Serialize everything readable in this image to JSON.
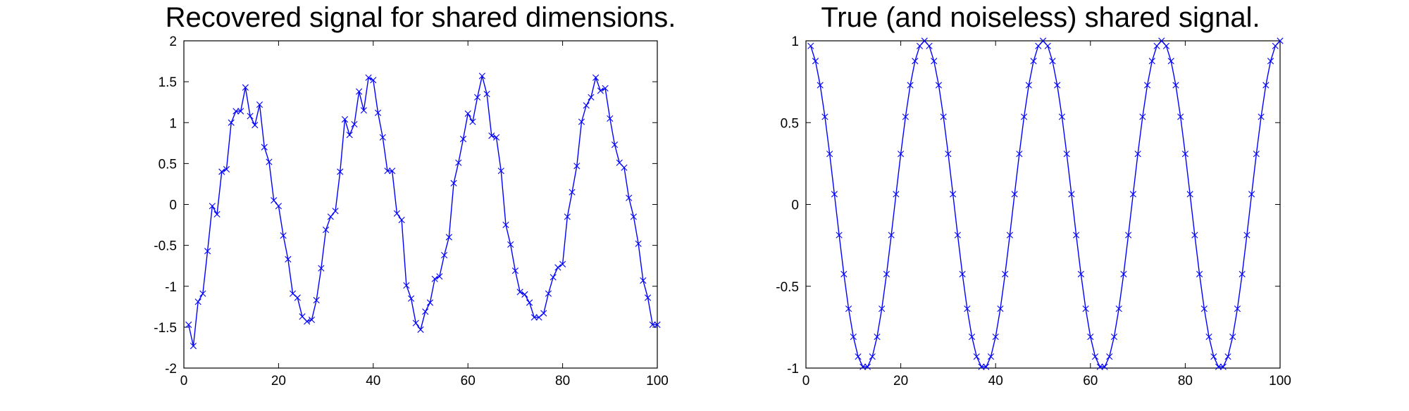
{
  "chart_data": [
    {
      "type": "line",
      "title": "Recovered signal for shared dimensions.",
      "xlabel": "",
      "ylabel": "",
      "xlim": [
        0,
        100
      ],
      "ylim": [
        -2,
        2
      ],
      "xticks": [
        0,
        20,
        40,
        60,
        80,
        100
      ],
      "xtick_labels": [
        "0",
        "20",
        "40",
        "60",
        "80",
        "100"
      ],
      "yticks": [
        -2,
        -1.5,
        -1,
        -0.5,
        0,
        0.5,
        1,
        1.5,
        2
      ],
      "ytick_labels": [
        "-2",
        "-1.5",
        "-1",
        "-0.5",
        "0",
        "0.5",
        "1",
        "1.5",
        "2"
      ],
      "grid": false,
      "marker": "x",
      "color": "#0000ff",
      "x": [
        1,
        2,
        3,
        4,
        5,
        6,
        7,
        8,
        9,
        10,
        11,
        12,
        13,
        14,
        15,
        16,
        17,
        18,
        19,
        20,
        21,
        22,
        23,
        24,
        25,
        26,
        27,
        28,
        29,
        30,
        31,
        32,
        33,
        34,
        35,
        36,
        37,
        38,
        39,
        40,
        41,
        42,
        43,
        44,
        45,
        46,
        47,
        48,
        49,
        50,
        51,
        52,
        53,
        54,
        55,
        56,
        57,
        58,
        59,
        60,
        61,
        62,
        63,
        64,
        65,
        66,
        67,
        68,
        69,
        70,
        71,
        72,
        73,
        74,
        75,
        76,
        77,
        78,
        79,
        80,
        81,
        82,
        83,
        84,
        85,
        86,
        87,
        88,
        89,
        90,
        91,
        92,
        93,
        94,
        95,
        96,
        97,
        98,
        99,
        100
      ],
      "y": [
        -1.47,
        -1.73,
        -1.19,
        -1.09,
        -0.57,
        -0.02,
        -0.12,
        0.4,
        0.43,
        1.0,
        1.14,
        1.14,
        1.43,
        1.08,
        0.97,
        1.22,
        0.7,
        0.52,
        0.05,
        -0.02,
        -0.38,
        -0.67,
        -1.09,
        -1.14,
        -1.37,
        -1.43,
        -1.41,
        -1.17,
        -0.78,
        -0.31,
        -0.15,
        -0.08,
        0.4,
        1.04,
        0.85,
        0.98,
        1.38,
        1.15,
        1.55,
        1.52,
        1.12,
        0.82,
        0.41,
        0.41,
        -0.11,
        -0.19,
        -0.99,
        -1.15,
        -1.45,
        -1.53,
        -1.31,
        -1.2,
        -0.91,
        -0.88,
        -0.62,
        -0.4,
        0.26,
        0.51,
        0.8,
        1.11,
        1.01,
        1.31,
        1.57,
        1.35,
        0.84,
        0.82,
        0.41,
        -0.25,
        -0.49,
        -0.81,
        -1.07,
        -1.1,
        -1.2,
        -1.38,
        -1.38,
        -1.33,
        -1.09,
        -0.89,
        -0.77,
        -0.73,
        -0.15,
        0.15,
        0.47,
        1.01,
        1.21,
        1.31,
        1.55,
        1.39,
        1.42,
        1.05,
        0.73,
        0.51,
        0.45,
        0.08,
        -0.15,
        -0.48,
        -0.93,
        -1.14,
        -1.47,
        -1.47
      ]
    },
    {
      "type": "line",
      "title": "True (and noiseless) shared signal.",
      "xlabel": "",
      "ylabel": "",
      "xlim": [
        0,
        100
      ],
      "ylim": [
        -1,
        1
      ],
      "xticks": [
        0,
        20,
        40,
        60,
        80,
        100
      ],
      "xtick_labels": [
        "0",
        "20",
        "40",
        "60",
        "80",
        "100"
      ],
      "yticks": [
        -1,
        -0.5,
        0,
        0.5,
        1
      ],
      "ytick_labels": [
        "-1",
        "-0.5",
        "0",
        "0.5",
        "1"
      ],
      "grid": false,
      "marker": "x",
      "color": "#0000ff",
      "x": [
        1,
        2,
        3,
        4,
        5,
        6,
        7,
        8,
        9,
        10,
        11,
        12,
        13,
        14,
        15,
        16,
        17,
        18,
        19,
        20,
        21,
        22,
        23,
        24,
        25,
        26,
        27,
        28,
        29,
        30,
        31,
        32,
        33,
        34,
        35,
        36,
        37,
        38,
        39,
        40,
        41,
        42,
        43,
        44,
        45,
        46,
        47,
        48,
        49,
        50,
        51,
        52,
        53,
        54,
        55,
        56,
        57,
        58,
        59,
        60,
        61,
        62,
        63,
        64,
        65,
        66,
        67,
        68,
        69,
        70,
        71,
        72,
        73,
        74,
        75,
        76,
        77,
        78,
        79,
        80,
        81,
        82,
        83,
        84,
        85,
        86,
        87,
        88,
        89,
        90,
        91,
        92,
        93,
        94,
        95,
        96,
        97,
        98,
        99,
        100
      ],
      "y": [
        0.9686,
        0.8763,
        0.729,
        0.5358,
        0.309,
        0.0628,
        -0.1874,
        -0.4258,
        -0.6374,
        -0.809,
        -0.9298,
        -0.9921,
        -0.9921,
        -0.9298,
        -0.809,
        -0.6374,
        -0.4258,
        -0.1874,
        0.0628,
        0.309,
        0.5358,
        0.729,
        0.8763,
        0.9686,
        1.0,
        0.9686,
        0.8763,
        0.729,
        0.5358,
        0.309,
        0.0628,
        -0.1874,
        -0.4258,
        -0.6374,
        -0.809,
        -0.9298,
        -0.9921,
        -0.9921,
        -0.9298,
        -0.809,
        -0.6374,
        -0.4258,
        -0.1874,
        0.0628,
        0.309,
        0.5358,
        0.729,
        0.8763,
        0.9686,
        1.0,
        0.9686,
        0.8763,
        0.729,
        0.5358,
        0.309,
        0.0628,
        -0.1874,
        -0.4258,
        -0.6374,
        -0.809,
        -0.9298,
        -0.9921,
        -0.9921,
        -0.9298,
        -0.809,
        -0.6374,
        -0.4258,
        -0.1874,
        0.0628,
        0.309,
        0.5358,
        0.729,
        0.8763,
        0.9686,
        1.0,
        0.9686,
        0.8763,
        0.729,
        0.5358,
        0.309,
        0.0628,
        -0.1874,
        -0.4258,
        -0.6374,
        -0.809,
        -0.9298,
        -0.9921,
        -0.9921,
        -0.9298,
        -0.809,
        -0.6374,
        -0.4258,
        -0.1874,
        0.0628,
        0.309,
        0.5358,
        0.729,
        0.8763,
        0.9686,
        1.0
      ]
    }
  ]
}
